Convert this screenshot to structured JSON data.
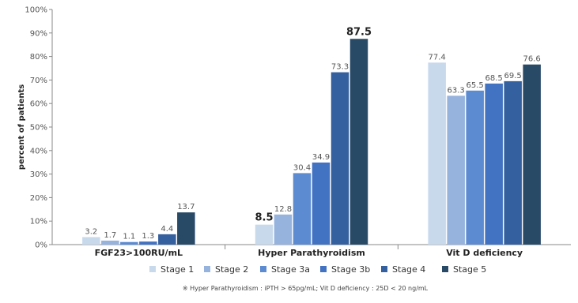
{
  "chart_data": {
    "type": "bar",
    "title": "",
    "xlabel": "",
    "ylabel": "percent of patients",
    "ylim": [
      0,
      100
    ],
    "yticks": [
      "0%",
      "10%",
      "20%",
      "30%",
      "40%",
      "50%",
      "60%",
      "70%",
      "80%",
      "90%",
      "100%"
    ],
    "categories": [
      "FGF23>100RU/mL",
      "Hyper Parathyroidism",
      "Vit D deficiency"
    ],
    "series": [
      {
        "name": "Stage 1",
        "color": "#c8d9ec",
        "values": [
          3.2,
          8.5,
          77.4
        ]
      },
      {
        "name": "Stage 2",
        "color": "#96b3de",
        "values": [
          1.7,
          12.8,
          63.3
        ]
      },
      {
        "name": "Stage 3a",
        "color": "#5d8bd2",
        "values": [
          1.1,
          30.4,
          65.5
        ]
      },
      {
        "name": "Stage 3b",
        "color": "#4272c2",
        "values": [
          1.3,
          34.9,
          68.5
        ]
      },
      {
        "name": "Stage 4",
        "color": "#35609f",
        "values": [
          4.4,
          73.3,
          69.5
        ]
      },
      {
        "name": "Stage 5",
        "color": "#284a67",
        "values": [
          13.7,
          87.5,
          76.6
        ]
      }
    ],
    "data_labels": [
      [
        "3.2",
        "1.7",
        "1.1",
        "1.3",
        "4.4",
        "13.7"
      ],
      [
        "8.5",
        "12.8",
        "30.4",
        "34.9",
        "73.3",
        "87.5"
      ],
      [
        "77.4",
        "63.3",
        "65.5",
        "68.5",
        "69.5",
        "76.6"
      ]
    ],
    "emphasized_labels": [
      "8.5",
      "87.5"
    ],
    "grid": false,
    "legend_position": "bottom",
    "footnote": "※ Hyper Parathyroidism : iPTH > 65pg/mL; Vit D deficiency : 25D < 20 ng/mL"
  }
}
